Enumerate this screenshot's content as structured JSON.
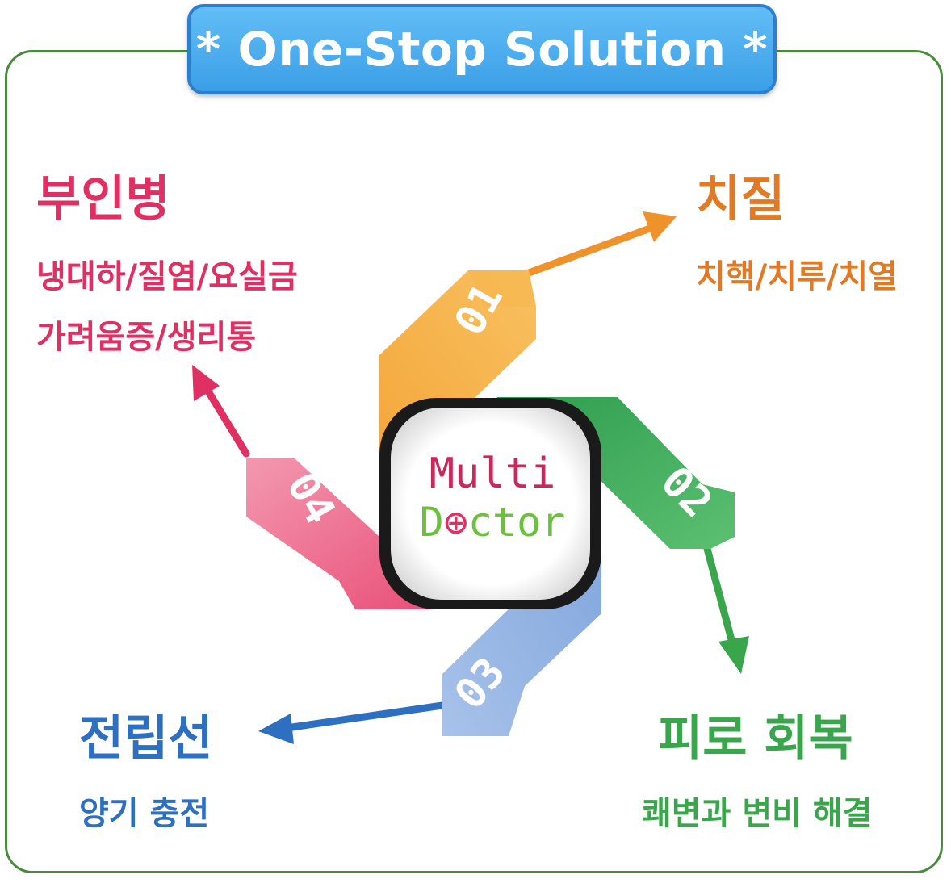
{
  "title": "* One-Stop Solution *",
  "center": {
    "line1": "Multi",
    "line2_before": "D",
    "line2_after": "ctor"
  },
  "items": [
    {
      "num": "01",
      "heading": "치질",
      "lines": [
        "치핵/치루/치열"
      ],
      "color": "#e07a24"
    },
    {
      "num": "02",
      "heading": "피로 회복",
      "lines": [
        "쾌변과 변비 해결"
      ],
      "color": "#3aa64c"
    },
    {
      "num": "03",
      "heading": "전립선",
      "lines": [
        "양기 충전"
      ],
      "color": "#2f6fc0"
    },
    {
      "num": "04",
      "heading": "부인병",
      "lines": [
        "냉대하/질염/요실금",
        "가려움증/생리통"
      ],
      "color": "#e03063"
    }
  ],
  "colors": {
    "frame": "#4a8a3c",
    "title_bg": "#4aaaf0",
    "orange": "#f0a840",
    "green": "#3fae5a",
    "blue": "#8aaee0",
    "pink": "#ee6a8c",
    "multi": "#c8285a",
    "doctor": "#6cc13c"
  }
}
